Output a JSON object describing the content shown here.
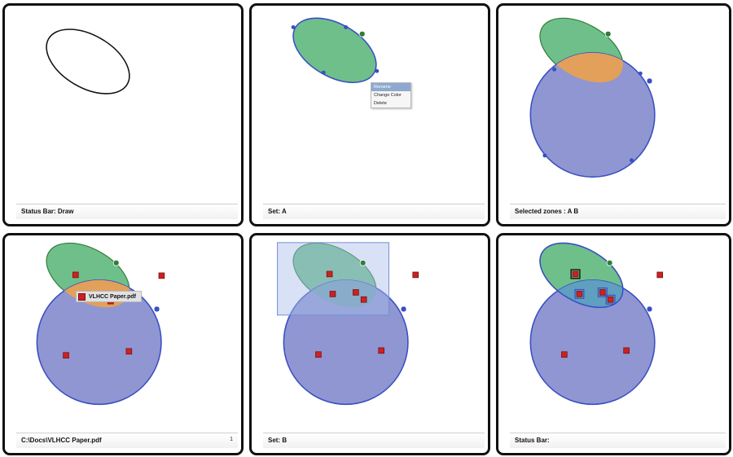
{
  "panels": [
    {
      "status": "Status Bar: Draw"
    },
    {
      "status": "Set: A"
    },
    {
      "status": "Selected zones : A B"
    },
    {
      "status": "C:\\Docs\\VLHCC Paper.pdf",
      "status_right": "1"
    },
    {
      "status": "Set: B"
    },
    {
      "status": "Status Bar:"
    }
  ],
  "context_menu": {
    "items": [
      "Rename",
      "Change Color",
      "Delete"
    ],
    "highlighted": "Rename"
  },
  "tooltip": {
    "filename": "VLHCC Paper.pdf"
  },
  "colors": {
    "set_a_fill": "#6fbf8a",
    "set_a_stroke": "#2f7d3a",
    "set_b_fill": "#8f96d2",
    "set_b_stroke": "#3a4fc2",
    "overlap_fill": "#e3a05a",
    "file_icon": "#cc2222",
    "selection_rect": "#a9bde8"
  },
  "icons": {
    "file": "pdf-file-icon",
    "set_label": "set-label-icon",
    "handle": "resize-handle"
  }
}
